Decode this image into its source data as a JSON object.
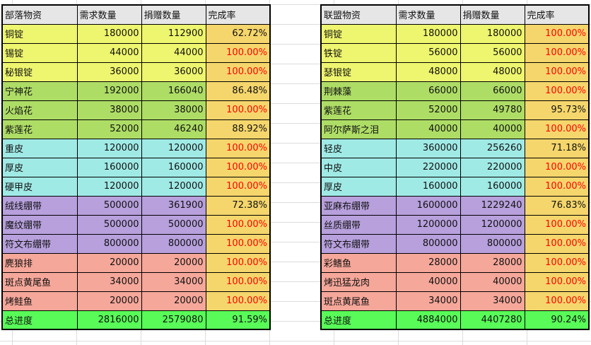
{
  "colors": {
    "metal": "#eef56e",
    "herb": "#aedd66",
    "leather": "#a0eae6",
    "bandage": "#b7a0dc",
    "food": "#f5a79a",
    "rate": "#f5d66c",
    "total": "#58fb58",
    "header": "#e6e6e6",
    "full_rate_text": "#ff0000"
  },
  "tables": [
    {
      "headers": [
        "部落物资",
        "需求数量",
        "捐赠数量",
        "完成率"
      ],
      "rows": [
        {
          "group": "metal",
          "cells": [
            "铜锭",
            "180000",
            "112900",
            "62.72%"
          ]
        },
        {
          "group": "metal",
          "cells": [
            "锡锭",
            "44000",
            "44000",
            "100.00%"
          ]
        },
        {
          "group": "metal",
          "cells": [
            "秘银锭",
            "36000",
            "36000",
            "100.00%"
          ]
        },
        {
          "group": "herb",
          "cells": [
            "宁神花",
            "192000",
            "166040",
            "86.48%"
          ]
        },
        {
          "group": "herb",
          "cells": [
            "火焰花",
            "38000",
            "38000",
            "100.00%"
          ]
        },
        {
          "group": "herb",
          "cells": [
            "紫莲花",
            "52000",
            "46240",
            "88.92%"
          ]
        },
        {
          "group": "leather",
          "cells": [
            "重皮",
            "120000",
            "120000",
            "100.00%"
          ]
        },
        {
          "group": "leather",
          "cells": [
            "厚皮",
            "160000",
            "160000",
            "100.00%"
          ]
        },
        {
          "group": "leather",
          "cells": [
            "硬甲皮",
            "120000",
            "120000",
            "100.00%"
          ]
        },
        {
          "group": "bandage",
          "cells": [
            "绒线绷带",
            "500000",
            "361900",
            "72.38%"
          ]
        },
        {
          "group": "bandage",
          "cells": [
            "魔纹绷带",
            "500000",
            "500000",
            "100.00%"
          ]
        },
        {
          "group": "bandage",
          "cells": [
            "符文布绷带",
            "800000",
            "800000",
            "100.00%"
          ]
        },
        {
          "group": "food",
          "cells": [
            "麂狼排",
            "20000",
            "20000",
            "100.00%"
          ]
        },
        {
          "group": "food",
          "cells": [
            "斑点黄尾鱼",
            "34000",
            "34000",
            "100.00%"
          ]
        },
        {
          "group": "food",
          "cells": [
            "烤鲑鱼",
            "20000",
            "20000",
            "100.00%"
          ]
        },
        {
          "group": "total",
          "cells": [
            "总进度",
            "2816000",
            "2579080",
            "91.59%"
          ]
        }
      ]
    },
    {
      "headers": [
        "联盟物资",
        "需求数量",
        "捐赠数量",
        "完成率"
      ],
      "rows": [
        {
          "group": "metal",
          "cells": [
            "铜锭",
            "180000",
            "180000",
            "100.00%"
          ]
        },
        {
          "group": "metal",
          "cells": [
            "铁锭",
            "56000",
            "56000",
            "100.00%"
          ]
        },
        {
          "group": "metal",
          "cells": [
            "瑟银锭",
            "48000",
            "48000",
            "100.00%"
          ]
        },
        {
          "group": "herb",
          "cells": [
            "荆棘藻",
            "66000",
            "66000",
            "100.00%"
          ]
        },
        {
          "group": "herb",
          "cells": [
            "紫莲花",
            "52000",
            "49780",
            "95.73%"
          ]
        },
        {
          "group": "herb",
          "cells": [
            "阿尔萨斯之泪",
            "40000",
            "40000",
            "100.00%"
          ]
        },
        {
          "group": "leather",
          "cells": [
            "轻皮",
            "360000",
            "256260",
            "71.18%"
          ]
        },
        {
          "group": "leather",
          "cells": [
            "中皮",
            "220000",
            "220000",
            "100.00%"
          ]
        },
        {
          "group": "leather",
          "cells": [
            "厚皮",
            "160000",
            "160000",
            "100.00%"
          ]
        },
        {
          "group": "bandage",
          "cells": [
            "亚麻布绷带",
            "1600000",
            "1229240",
            "76.83%"
          ]
        },
        {
          "group": "bandage",
          "cells": [
            "丝质绷带",
            "1200000",
            "1200000",
            "100.00%"
          ]
        },
        {
          "group": "bandage",
          "cells": [
            "符文布绷带",
            "800000",
            "800000",
            "100.00%"
          ]
        },
        {
          "group": "food",
          "cells": [
            "彩鳍鱼",
            "28000",
            "28000",
            "100.00%"
          ]
        },
        {
          "group": "food",
          "cells": [
            "烤迅猛龙肉",
            "40000",
            "40000",
            "100.00%"
          ]
        },
        {
          "group": "food",
          "cells": [
            "斑点黄尾鱼",
            "34000",
            "34000",
            "100.00%"
          ]
        },
        {
          "group": "total",
          "cells": [
            "总进度",
            "4884000",
            "4407280",
            "90.24%"
          ]
        }
      ]
    }
  ]
}
